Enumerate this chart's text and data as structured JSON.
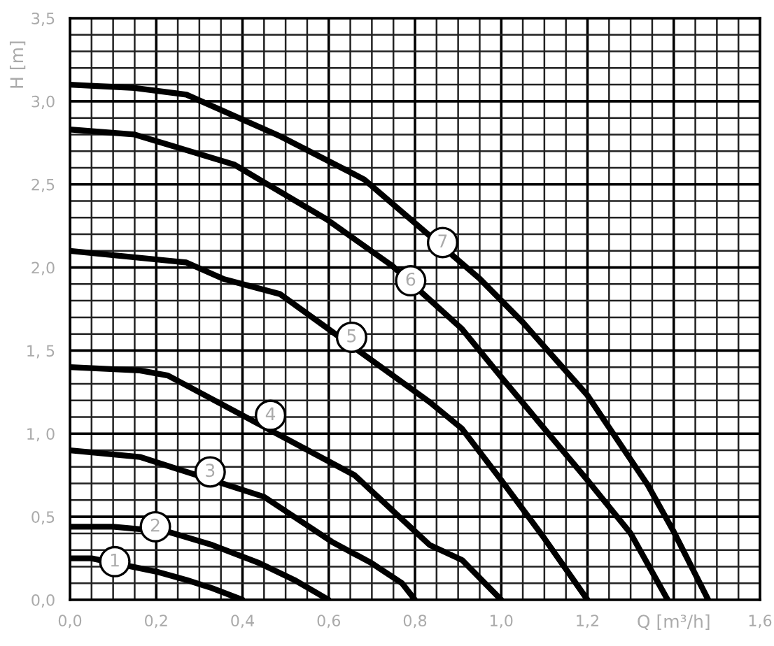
{
  "chart_data": {
    "type": "line",
    "xlabel": "Q [m³/h]",
    "ylabel": "H [m]",
    "xlim": [
      0,
      1.6
    ],
    "ylim": [
      0,
      3.5
    ],
    "xticks": [
      {
        "value": 0,
        "label": "0,0"
      },
      {
        "value": 0.2,
        "label": "0,2"
      },
      {
        "value": 0.4,
        "label": "0,4"
      },
      {
        "value": 0.6,
        "label": "0,6"
      },
      {
        "value": 0.8,
        "label": "0,8"
      },
      {
        "value": 1.0,
        "label": "1,0"
      },
      {
        "value": 1.2,
        "label": "1,2"
      },
      {
        "value": 1.4,
        "label": null
      },
      {
        "value": 1.6,
        "label": "1,6"
      }
    ],
    "yticks": [
      {
        "value": 0,
        "label": "0,0"
      },
      {
        "value": 0.5,
        "label": "0,5"
      },
      {
        "value": 1.0,
        "label": "1, 0"
      },
      {
        "value": 1.5,
        "label": "1, 5"
      },
      {
        "value": 2.0,
        "label": "2,0"
      },
      {
        "value": 2.5,
        "label": "2,5"
      },
      {
        "value": 3.0,
        "label": "3,0"
      },
      {
        "value": 3.5,
        "label": "3,5"
      }
    ],
    "grid": true,
    "legend": false,
    "marker": "none",
    "line_style": "solid",
    "series": [
      {
        "color": "#000000",
        "x": [
          0,
          0.05,
          0.2,
          0.27,
          0.33,
          0.4
        ],
        "values": [
          0.25,
          0.25,
          0.17,
          0.12,
          0.07,
          0
        ]
      },
      {
        "color": "#000000",
        "x": [
          0,
          0.1,
          0.227,
          0.33,
          0.44,
          0.52,
          0.6
        ],
        "values": [
          0.44,
          0.44,
          0.41,
          0.33,
          0.22,
          0.12,
          0
        ]
      },
      {
        "color": "#000000",
        "x": [
          0,
          0.162,
          0.45,
          0.607,
          0.7,
          0.77,
          0.8
        ],
        "values": [
          0.9,
          0.86,
          0.62,
          0.35,
          0.22,
          0.1,
          0
        ]
      },
      {
        "color": "#000000",
        "x": [
          0,
          0.162,
          0.227,
          0.66,
          0.834,
          0.909,
          1.0
        ],
        "values": [
          1.4,
          1.38,
          1.35,
          0.75,
          0.33,
          0.24,
          0
        ]
      },
      {
        "color": "#000000",
        "x": [
          0,
          0.27,
          0.357,
          0.487,
          0.834,
          0.909,
          1.0,
          1.1,
          1.2
        ],
        "values": [
          2.1,
          2.03,
          1.93,
          1.84,
          1.19,
          1.03,
          0.72,
          0.37,
          0
        ]
      },
      {
        "color": "#000000",
        "x": [
          0,
          0.15,
          0.38,
          0.595,
          0.747,
          0.909,
          1.0,
          1.2,
          1.3,
          1.386
        ],
        "values": [
          2.83,
          2.8,
          2.62,
          2.29,
          2.01,
          1.63,
          1.34,
          0.72,
          0.4,
          0
        ]
      },
      {
        "color": "#000000",
        "x": [
          0,
          0.15,
          0.27,
          0.487,
          0.682,
          0.951,
          1.05,
          1.2,
          1.34,
          1.4,
          1.48
        ],
        "values": [
          3.1,
          3.08,
          3.04,
          2.79,
          2.53,
          1.93,
          1.67,
          1.23,
          0.69,
          0.41,
          0
        ]
      }
    ],
    "annotations": [
      {
        "text": "1",
        "x": 0.104,
        "y": 0.23
      },
      {
        "text": "2",
        "x": 0.198,
        "y": 0.44
      },
      {
        "text": "3",
        "x": 0.325,
        "y": 0.77
      },
      {
        "text": "4",
        "x": 0.465,
        "y": 1.11
      },
      {
        "text": "5",
        "x": 0.653,
        "y": 1.58
      },
      {
        "text": "6",
        "x": 0.79,
        "y": 1.92
      },
      {
        "text": "7",
        "x": 0.864,
        "y": 2.15
      }
    ]
  }
}
